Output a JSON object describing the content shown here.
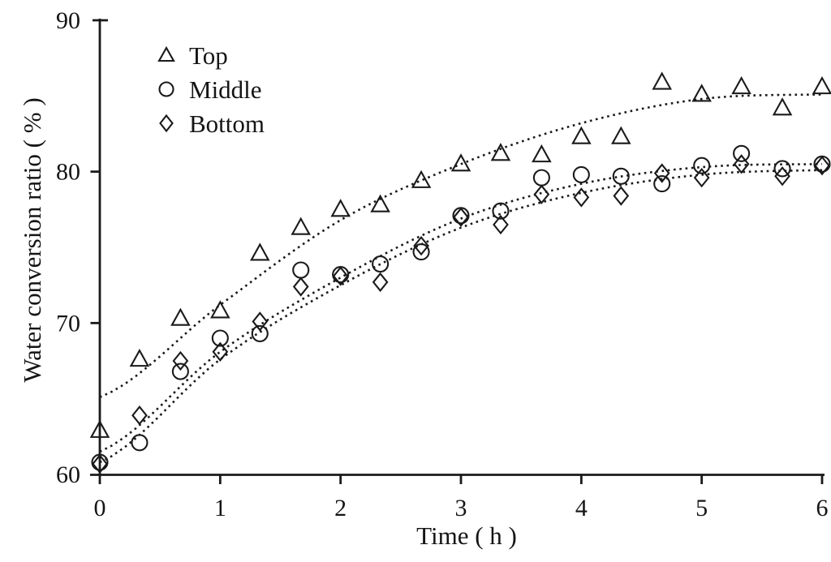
{
  "figure": {
    "background": "#ffffff",
    "ink_color": "#1a1a1a"
  },
  "chart_data": {
    "type": "scatter",
    "title": "",
    "xlabel": "Time ( h )",
    "ylabel": "Water conversion ratio ( % )",
    "xlim": [
      0,
      6
    ],
    "ylim": [
      60,
      90
    ],
    "xticks": [
      "0",
      "1",
      "2",
      "3",
      "4",
      "5",
      "6"
    ],
    "yticks": [
      60,
      70,
      80,
      90
    ],
    "grid": false,
    "legend_position": "upper-left-inside",
    "marker_style": "open",
    "trend_line_style": "dotted",
    "x": [
      0,
      0.33,
      0.67,
      1,
      1.33,
      1.67,
      2,
      2.33,
      2.67,
      3,
      3.33,
      3.67,
      4,
      4.33,
      4.67,
      5,
      5.33,
      5.67,
      6
    ],
    "series": [
      {
        "name": "Top",
        "marker": "triangle",
        "values": [
          62.9,
          67.6,
          70.3,
          70.8,
          74.6,
          76.3,
          77.5,
          77.8,
          79.4,
          80.5,
          81.2,
          81.1,
          82.3,
          82.3,
          85.9,
          85.1,
          85.6,
          84.2,
          85.6
        ],
        "trend": [
          65.1,
          71.2,
          76.8,
          80.5,
          83.2,
          84.8,
          85.1
        ]
      },
      {
        "name": "Middle",
        "marker": "circle",
        "values": [
          60.8,
          62.1,
          66.8,
          69.0,
          69.3,
          73.5,
          73.2,
          73.9,
          74.7,
          77.1,
          77.4,
          79.6,
          79.8,
          79.7,
          79.2,
          80.4,
          81.2,
          80.2,
          80.5
        ],
        "trend": [
          61.5,
          68.1,
          73.0,
          76.9,
          79.2,
          80.3,
          80.5
        ]
      },
      {
        "name": "Bottom",
        "marker": "diamond",
        "values": [
          60.7,
          63.9,
          67.5,
          68.1,
          70.1,
          72.4,
          73.1,
          72.7,
          75.1,
          77.0,
          76.5,
          78.5,
          78.3,
          78.4,
          79.9,
          79.6,
          80.5,
          79.7,
          80.4
        ],
        "trend": [
          60.8,
          67.6,
          72.5,
          76.3,
          78.6,
          79.8,
          80.1
        ]
      }
    ]
  }
}
